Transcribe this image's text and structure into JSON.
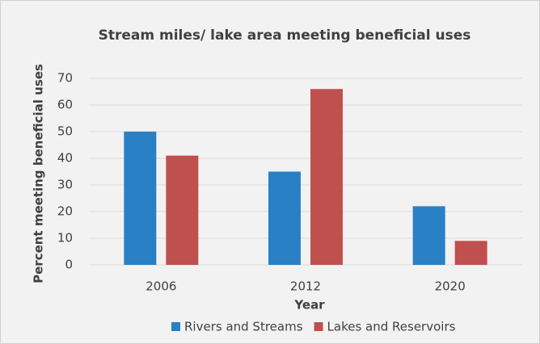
{
  "chart_data": {
    "type": "bar",
    "title": "Stream miles/ lake area meeting beneficial uses",
    "categories": [
      "2006",
      "2012",
      "2020"
    ],
    "series": [
      {
        "name": "Rivers and Streams",
        "color": "#2a80c4",
        "values": [
          50,
          35,
          22
        ]
      },
      {
        "name": "Lakes and Reservoirs",
        "color": "#c0504d",
        "values": [
          41,
          66,
          9
        ]
      }
    ],
    "xlabel": "Year",
    "ylabel": "Percent meeting beneficial uses",
    "ylim": [
      0,
      70
    ],
    "yticks": [
      0,
      10,
      20,
      30,
      40,
      50,
      60,
      70
    ],
    "grid": true,
    "legend": "bottom"
  }
}
